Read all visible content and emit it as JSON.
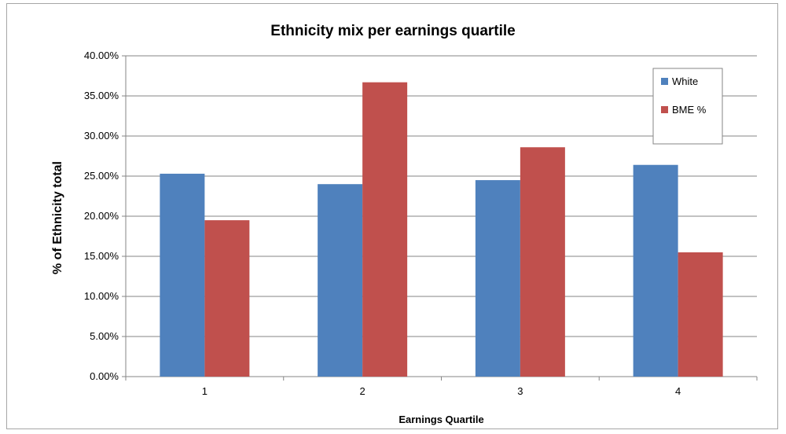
{
  "chart_data": {
    "type": "bar",
    "title": "Ethnicity mix per earnings quartile",
    "xlabel": "Earnings Quartile",
    "ylabel": "% of Ethnicity total",
    "categories": [
      "1",
      "2",
      "3",
      "4"
    ],
    "series": [
      {
        "name": "White",
        "values": [
          25.3,
          24.0,
          24.5,
          26.4
        ],
        "color": "#4f81bd"
      },
      {
        "name": "BME %",
        "values": [
          19.5,
          36.7,
          28.6,
          15.5
        ],
        "color": "#c0504d"
      }
    ],
    "ylim": [
      0,
      40
    ],
    "yticks": [
      "0.00%",
      "5.00%",
      "10.00%",
      "15.00%",
      "20.00%",
      "25.00%",
      "30.00%",
      "35.00%",
      "40.00%"
    ],
    "grid": true,
    "legend_position": "top-right"
  }
}
